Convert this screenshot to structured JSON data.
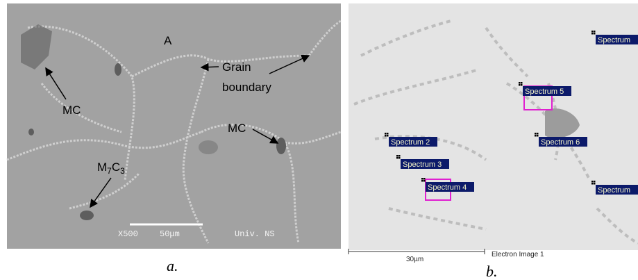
{
  "panel_a": {
    "labels": {
      "phase_a": "A",
      "grain_boundary": [
        "Grain",
        "boundary"
      ],
      "mc_left": "MC",
      "mc_right": "MC",
      "m7c3": [
        "M",
        "7",
        "C",
        "3"
      ]
    },
    "info_bar": {
      "magnification": "X500",
      "scale": "50μm",
      "source": "Univ. NS"
    },
    "caption": "a."
  },
  "panel_b": {
    "spectra": [
      "Spectrum",
      "Spectrum 5",
      "Spectrum 2",
      "Spectrum 6",
      "Spectrum 3",
      "Spectrum 4",
      "Spectrum"
    ],
    "scale": "30µm",
    "image_name": "Electron Image 1",
    "caption": "b."
  }
}
